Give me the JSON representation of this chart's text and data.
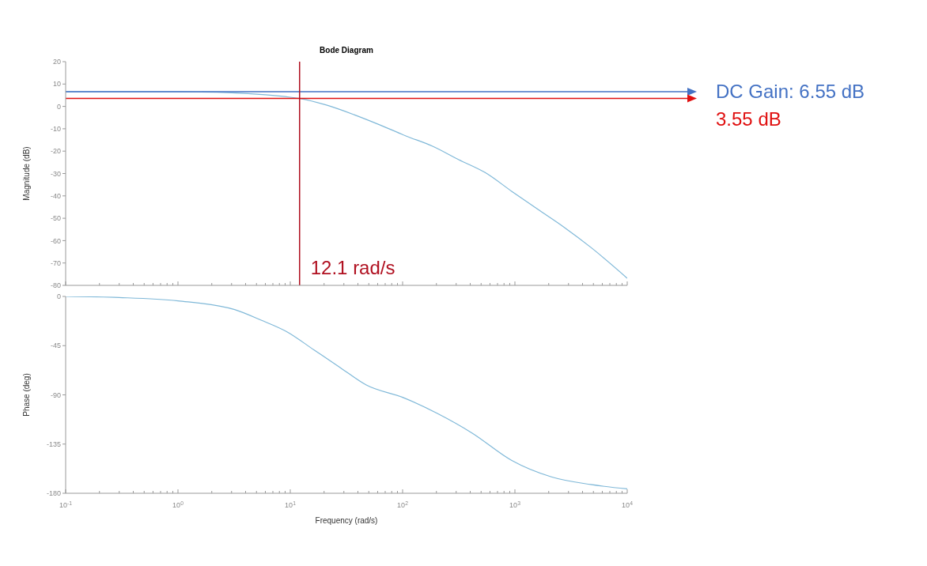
{
  "chart_data": [
    {
      "type": "line",
      "title": "Bode Diagram",
      "ylabel": "Magnitude (dB)",
      "log": "x",
      "xlim": [
        0.1,
        10000
      ],
      "ylim": [
        -80,
        20
      ],
      "yticks": [
        -80,
        -70,
        -60,
        -50,
        -40,
        -30,
        -20,
        -10,
        0,
        10,
        20
      ],
      "xticks": [
        {
          "value": 0.1,
          "label": null
        },
        {
          "value": 0.2,
          "label": null
        },
        {
          "value": 0.3,
          "label": null
        },
        {
          "value": 0.4,
          "label": null
        },
        {
          "value": 0.5,
          "label": null
        },
        {
          "value": 0.6,
          "label": null
        },
        {
          "value": 0.7,
          "label": null
        },
        {
          "value": 0.8,
          "label": null
        },
        {
          "value": 0.9,
          "label": null
        },
        {
          "value": 1,
          "label": null
        },
        {
          "value": 2,
          "label": null
        },
        {
          "value": 3,
          "label": null
        },
        {
          "value": 4,
          "label": null
        },
        {
          "value": 5,
          "label": null
        },
        {
          "value": 6,
          "label": null
        },
        {
          "value": 7,
          "label": null
        },
        {
          "value": 8,
          "label": null
        },
        {
          "value": 9,
          "label": null
        },
        {
          "value": 10,
          "label": null
        },
        {
          "value": 20,
          "label": null
        },
        {
          "value": 30,
          "label": null
        },
        {
          "value": 40,
          "label": null
        },
        {
          "value": 50,
          "label": null
        },
        {
          "value": 60,
          "label": null
        },
        {
          "value": 70,
          "label": null
        },
        {
          "value": 80,
          "label": null
        },
        {
          "value": 90,
          "label": null
        },
        {
          "value": 100,
          "label": null
        },
        {
          "value": 200,
          "label": null
        },
        {
          "value": 300,
          "label": null
        },
        {
          "value": 400,
          "label": null
        },
        {
          "value": 500,
          "label": null
        },
        {
          "value": 600,
          "label": null
        },
        {
          "value": 700,
          "label": null
        },
        {
          "value": 800,
          "label": null
        },
        {
          "value": 900,
          "label": null
        },
        {
          "value": 1000,
          "label": null
        },
        {
          "value": 2000,
          "label": null
        },
        {
          "value": 3000,
          "label": null
        },
        {
          "value": 4000,
          "label": null
        },
        {
          "value": 5000,
          "label": null
        },
        {
          "value": 6000,
          "label": null
        },
        {
          "value": 7000,
          "label": null
        },
        {
          "value": 8000,
          "label": null
        },
        {
          "value": 9000,
          "label": null
        },
        {
          "value": 10000,
          "label": null
        }
      ],
      "tick_labels": "y",
      "series": [
        {
          "color": "#7fb8d8",
          "x": [
            0.1,
            0.3,
            1,
            3,
            6,
            10,
            12.1,
            21,
            37,
            63,
            107,
            185,
            316,
            540,
            940,
            1600,
            2740,
            4740,
            10000
          ],
          "values": [
            6.55,
            6.55,
            6.5,
            6.1,
            5.2,
            4.1,
            3.55,
            0.6,
            -3.7,
            -8.3,
            -13.2,
            -17.8,
            -23.8,
            -29.5,
            -38,
            -46,
            -54,
            -63,
            -76.8
          ]
        }
      ],
      "ref_lines": [
        {
          "axis": "y",
          "value": 6.55,
          "label": "DC Gain: 6.55 dB",
          "color": "#4472c4"
        },
        {
          "axis": "y",
          "value": 3.55,
          "label": "3.55 dB",
          "color": "#e01010"
        },
        {
          "axis": "x",
          "value": 12.1,
          "label": "12.1 rad/s",
          "color": "#b01020"
        }
      ]
    },
    {
      "type": "line",
      "ylabel": "Phase (deg)",
      "xlabel": "Frequency  (rad/s)",
      "log": "x",
      "xlim": [
        0.1,
        10000
      ],
      "ylim": [
        -180,
        0
      ],
      "yticks": [
        -180,
        -135,
        -90,
        -45,
        0
      ],
      "xticks": [
        {
          "value": 0.1,
          "label": "10$^{-1}$"
        },
        {
          "value": 0.2,
          "label": null
        },
        {
          "value": 0.3,
          "label": null
        },
        {
          "value": 0.4,
          "label": null
        },
        {
          "value": 0.5,
          "label": null
        },
        {
          "value": 0.6,
          "label": null
        },
        {
          "value": 0.7,
          "label": null
        },
        {
          "value": 0.8,
          "label": null
        },
        {
          "value": 0.9,
          "label": null
        },
        {
          "value": 1,
          "label": "10$^{0}$"
        },
        {
          "value": 2,
          "label": null
        },
        {
          "value": 3,
          "label": null
        },
        {
          "value": 4,
          "label": null
        },
        {
          "value": 5,
          "label": null
        },
        {
          "value": 6,
          "label": null
        },
        {
          "value": 7,
          "label": null
        },
        {
          "value": 8,
          "label": null
        },
        {
          "value": 9,
          "label": null
        },
        {
          "value": 10,
          "label": "10$^{1}$"
        },
        {
          "value": 20,
          "label": null
        },
        {
          "value": 30,
          "label": null
        },
        {
          "value": 40,
          "label": null
        },
        {
          "value": 50,
          "label": null
        },
        {
          "value": 60,
          "label": null
        },
        {
          "value": 70,
          "label": null
        },
        {
          "value": 80,
          "label": null
        },
        {
          "value": 90,
          "label": null
        },
        {
          "value": 100,
          "label": "10$^{2}$"
        },
        {
          "value": 200,
          "label": null
        },
        {
          "value": 300,
          "label": null
        },
        {
          "value": 400,
          "label": null
        },
        {
          "value": 500,
          "label": null
        },
        {
          "value": 600,
          "label": null
        },
        {
          "value": 700,
          "label": null
        },
        {
          "value": 800,
          "label": null
        },
        {
          "value": 900,
          "label": null
        },
        {
          "value": 1000,
          "label": "10$^{3}$"
        },
        {
          "value": 2000,
          "label": null
        },
        {
          "value": 3000,
          "label": null
        },
        {
          "value": 4000,
          "label": null
        },
        {
          "value": 5000,
          "label": null
        },
        {
          "value": 6000,
          "label": null
        },
        {
          "value": 7000,
          "label": null
        },
        {
          "value": 8000,
          "label": null
        },
        {
          "value": 9000,
          "label": null
        },
        {
          "value": 10000,
          "label": "10$^{4}$"
        }
      ],
      "series": [
        {
          "color": "#7fb8d8",
          "x": [
            0.1,
            0.3,
            1,
            3.2,
            5.5,
            9.4,
            16.3,
            27.8,
            47.5,
            102,
            204,
            417,
            938,
            2110,
            4740,
            10000
          ],
          "values": [
            0,
            -1,
            -4,
            -12,
            -21.7,
            -32.5,
            -49,
            -65,
            -81,
            -92.6,
            -107,
            -125,
            -150,
            -165,
            -172,
            -176
          ]
        }
      ]
    }
  ]
}
